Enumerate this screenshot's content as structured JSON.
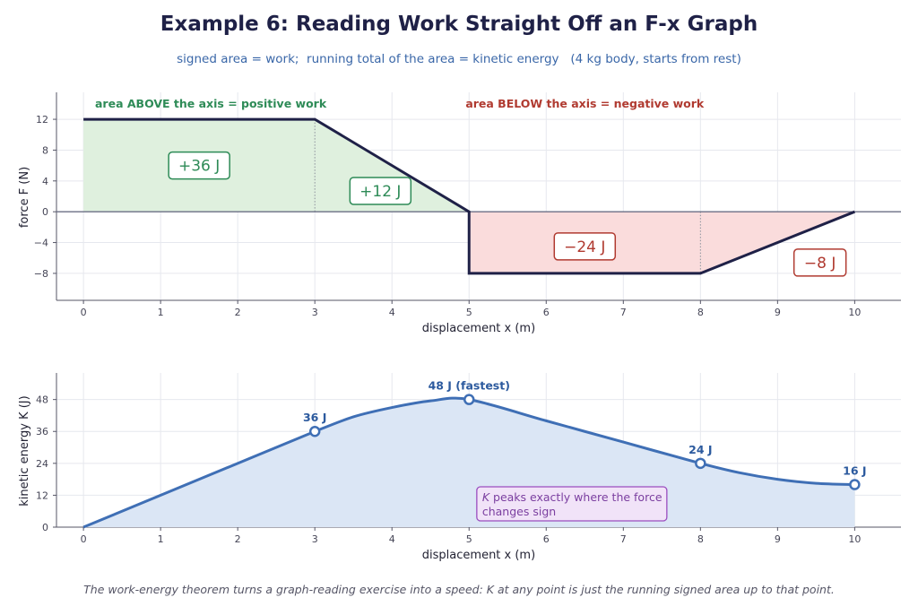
{
  "title": "Example 6: Reading Work Straight Off an F-x Graph",
  "subtitle": "signed area = work;  running total of the area = kinetic energy   (4 kg body, starts from rest)",
  "footnote": "The work-energy theorem turns a graph-reading exercise into a speed: K at any point is just the running signed area up to that point.",
  "colors": {
    "positive_fill": "#dff0de",
    "positive_text": "#2e8b57",
    "negative_fill": "#fadcdc",
    "negative_text": "#b03a30",
    "force_line": "#1f2147",
    "ke_line": "#3f6fb5",
    "ke_fill": "#dbe6f5",
    "note_border": "#9b4dbf",
    "note_fill": "#f1e3f8",
    "note_text": "#7b3fa0"
  },
  "chart_data": [
    {
      "type": "line",
      "xlabel": "displacement x  (m)",
      "ylabel": "force F  (N)",
      "xlim": [
        -0.35,
        10.6
      ],
      "ylim": [
        -11.5,
        15.5
      ],
      "xticks": [
        0,
        1,
        2,
        3,
        4,
        5,
        6,
        7,
        8,
        9,
        10
      ],
      "yticks": [
        12,
        8,
        4,
        0,
        -4,
        -8
      ],
      "ytick_labels": [
        "12",
        "8",
        "4",
        "0",
        "−4",
        "−8"
      ],
      "grid": true,
      "series": [
        {
          "x": [
            0,
            3,
            5,
            5,
            8,
            10
          ],
          "y": [
            12,
            12,
            0,
            -8,
            -8,
            0
          ]
        }
      ],
      "regions": [
        {
          "label": "+36 J",
          "x": [
            0,
            3
          ],
          "sign": "positive",
          "label_at": [
            1.5,
            6
          ]
        },
        {
          "label": "+12 J",
          "x": [
            3,
            5
          ],
          "sign": "positive",
          "label_at": [
            3.85,
            2.7
          ]
        },
        {
          "label": "−24 J",
          "x": [
            5,
            8
          ],
          "sign": "negative",
          "label_at": [
            6.5,
            -4.5
          ]
        },
        {
          "label": "−8 J",
          "x": [
            8,
            10
          ],
          "sign": "negative",
          "label_at": [
            9.55,
            -6.6
          ]
        }
      ],
      "annotations": [
        {
          "text": "area ABOVE the axis  =  positive work",
          "sign": "positive",
          "x": 0.15,
          "y": 14,
          "anchor": "start"
        },
        {
          "text": "area BELOW the axis  =  negative work",
          "sign": "negative",
          "x": 6.5,
          "y": 14,
          "anchor": "middle"
        }
      ]
    },
    {
      "type": "line",
      "xlabel": "displacement x  (m)",
      "ylabel": "kinetic energy K  (J)",
      "xlim": [
        -0.35,
        10.6
      ],
      "ylim": [
        0,
        58
      ],
      "xticks": [
        0,
        1,
        2,
        3,
        4,
        5,
        6,
        7,
        8,
        9,
        10
      ],
      "yticks": [
        0,
        12,
        24,
        36,
        48
      ],
      "grid": true,
      "series": [
        {
          "x": [
            0,
            3,
            3.5,
            4,
            4.5,
            5,
            6,
            7,
            8,
            8.5,
            9,
            9.5,
            10
          ],
          "y": [
            0,
            36,
            41.5,
            45,
            47.5,
            48,
            40,
            32,
            24,
            20.5,
            18,
            16.5,
            16
          ]
        }
      ],
      "markers": [
        {
          "x": 3,
          "y": 36,
          "label": "36 J"
        },
        {
          "x": 5,
          "y": 48,
          "label": "48 J  (fastest)"
        },
        {
          "x": 8,
          "y": 24,
          "label": "24 J"
        },
        {
          "x": 10,
          "y": 16,
          "label": "16 J"
        }
      ],
      "note": {
        "line1_symbol": "K",
        "line1_rest": " peaks exactly where the force",
        "line2": "changes sign"
      }
    }
  ]
}
